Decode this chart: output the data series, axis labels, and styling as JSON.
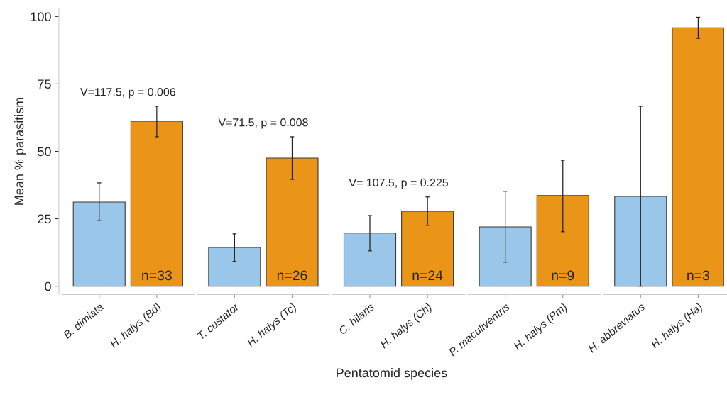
{
  "chart_data": {
    "type": "bar",
    "xlabel": "Pentatomid species",
    "ylabel": "Mean % parasitism",
    "categories": [
      "B. dimiata",
      "H. halys (Bd)",
      "T. custator",
      "H. halys (Tc)",
      "C. hilaris",
      "H. halys (Ch)",
      "P. maculiventris",
      "H. halys (Pm)",
      "H. abbreviatus",
      "H. halys (Ha)"
    ],
    "values": [
      31.2,
      61.2,
      14.4,
      47.5,
      19.7,
      27.8,
      22,
      33.6,
      33.3,
      95.8
    ],
    "colors": [
      "#9ac6e9",
      "#ea9418",
      "#9ac6e9",
      "#ea9418",
      "#9ac6e9",
      "#ea9418",
      "#9ac6e9",
      "#ea9418",
      "#9ac6e9",
      "#ea9418"
    ],
    "errors": [
      [
        24.4,
        38.3
      ],
      [
        55.4,
        66.7
      ],
      [
        9.2,
        19.4
      ],
      [
        39.6,
        55.4
      ],
      [
        13.1,
        26.2
      ],
      [
        22.6,
        33.1
      ],
      [
        8.9,
        35.2
      ],
      [
        20.2,
        46.7
      ],
      [
        0,
        66.7
      ],
      [
        91.9,
        99.7
      ]
    ],
    "ylim": [
      -3,
      103
    ],
    "yticks": [
      0,
      25,
      50,
      75,
      100
    ],
    "grid": false,
    "legend": false,
    "annotations": [
      "V=117.5, p = 0.006",
      "V=71.5, p = 0.008",
      "V= 107.5, p = 0.225",
      "n=33",
      "n=26",
      "n=24",
      "n=9",
      "n=3"
    ]
  }
}
